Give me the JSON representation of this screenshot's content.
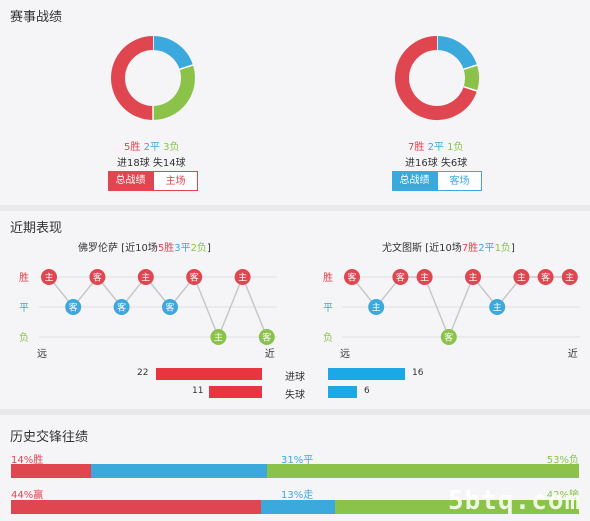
{
  "colors": {
    "win": "#e04650",
    "draw": "#3ba9dc",
    "loss": "#8bc34a",
    "track": "#d9d9d9"
  },
  "season": {
    "title": "赛事战绩",
    "left": {
      "win": "5胜",
      "draw": "2平",
      "loss": "3负",
      "goals": "进18球 失14球",
      "tab_active": "总战绩",
      "tab_other": "主场",
      "chart_data": {
        "type": "pie",
        "categories": [
          "胜",
          "平",
          "负"
        ],
        "values": [
          5,
          2,
          3
        ]
      }
    },
    "right": {
      "win": "7胜",
      "draw": "2平",
      "loss": "1负",
      "goals": "进16球 失6球",
      "tab_active": "总战绩",
      "tab_other": "客场",
      "chart_data": {
        "type": "pie",
        "categories": [
          "胜",
          "平",
          "负"
        ],
        "values": [
          7,
          2,
          1
        ]
      }
    }
  },
  "recent": {
    "title": "近期表现",
    "row_labels": {
      "win": "胜",
      "draw": "平",
      "loss": "负"
    },
    "far": "远",
    "near": "近",
    "left": {
      "team": "佛罗伦萨",
      "bracket_open": " [近10场",
      "w": "5胜",
      "d": "3平",
      "l": "2负",
      "bracket_close": "]",
      "games": [
        {
          "r": "w",
          "v": "主"
        },
        {
          "r": "d",
          "v": "客"
        },
        {
          "r": "w",
          "v": "客"
        },
        {
          "r": "d",
          "v": "客"
        },
        {
          "r": "w",
          "v": "主"
        },
        {
          "r": "d",
          "v": "客"
        },
        {
          "r": "w",
          "v": "客"
        },
        {
          "r": "l",
          "v": "主"
        },
        {
          "r": "w",
          "v": "主"
        },
        {
          "r": "l",
          "v": "客"
        }
      ]
    },
    "right": {
      "team": "尤文图斯",
      "bracket_open": " [近10场",
      "w": "7胜",
      "d": "2平",
      "l": "1负",
      "bracket_close": "]",
      "games": [
        {
          "r": "w",
          "v": "客"
        },
        {
          "r": "d",
          "v": "主"
        },
        {
          "r": "w",
          "v": "客"
        },
        {
          "r": "w",
          "v": "主"
        },
        {
          "r": "l",
          "v": "客"
        },
        {
          "r": "w",
          "v": "主"
        },
        {
          "r": "d",
          "v": "主"
        },
        {
          "r": "w",
          "v": "主"
        },
        {
          "r": "w",
          "v": "客"
        },
        {
          "r": "w",
          "v": "主"
        }
      ]
    },
    "goals_for": {
      "label": "进球",
      "left": 22,
      "right": 16
    },
    "goals_against": {
      "label": "失球",
      "left": 11,
      "right": 6
    }
  },
  "history": {
    "title": "历史交锋往绩",
    "row1": {
      "win_label": "14%胜",
      "draw_label": "31%平",
      "loss_label": "53%负",
      "win": 14,
      "draw": 31,
      "loss": 53
    },
    "row2": {
      "win_label": "44%赢",
      "draw_label": "13%走",
      "loss_label": "42%输",
      "win": 44,
      "draw": 13,
      "loss": 42
    }
  },
  "watermark": "5btq.com"
}
